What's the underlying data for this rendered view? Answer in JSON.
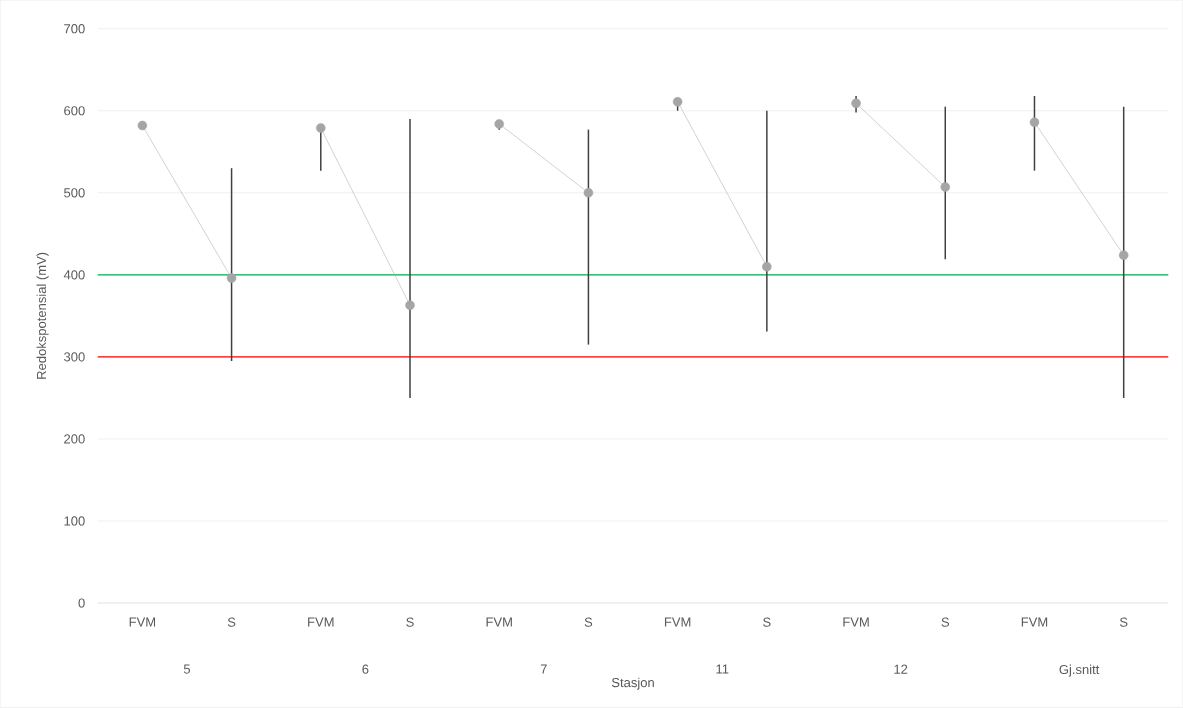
{
  "chart_data": {
    "type": "line",
    "xlabel": "Stasjon",
    "ylabel": "Redokspotensial (mV)",
    "categories": [
      "FVM",
      "S",
      "FVM",
      "S",
      "FVM",
      "S",
      "FVM",
      "S",
      "FVM",
      "S",
      "FVM",
      "S"
    ],
    "series": [
      {
        "color": "#a5a5a5",
        "values": [
          582,
          396,
          null,
          null,
          null,
          null,
          null,
          null,
          null,
          null,
          null,
          null
        ],
        "errors": [
          null,
          [
            295,
            530
          ],
          null,
          null,
          null,
          null,
          null,
          null,
          null,
          null,
          null,
          null
        ]
      },
      {
        "color": "#a5a5a5",
        "values": [
          null,
          null,
          579,
          363,
          null,
          null,
          null,
          null,
          null,
          null,
          null,
          null
        ],
        "errors": [
          null,
          null,
          [
            527,
            579
          ],
          [
            250,
            590
          ],
          null,
          null,
          null,
          null,
          null,
          null,
          null,
          null
        ]
      },
      {
        "color": "#a5a5a5",
        "values": [
          null,
          null,
          null,
          null,
          584,
          500,
          null,
          null,
          null,
          null,
          null,
          null
        ],
        "errors": [
          null,
          null,
          null,
          null,
          [
            577,
            584
          ],
          [
            315,
            577
          ],
          null,
          null,
          null,
          null,
          null,
          null
        ]
      },
      {
        "color": "#a5a5a5",
        "values": [
          null,
          null,
          null,
          null,
          null,
          null,
          611,
          410,
          null,
          null,
          null,
          null
        ],
        "errors": [
          null,
          null,
          null,
          null,
          null,
          null,
          [
            600,
            611
          ],
          [
            331,
            600
          ],
          null,
          null,
          null,
          null
        ]
      },
      {
        "color": "#a5a5a5",
        "values": [
          null,
          null,
          null,
          null,
          null,
          null,
          null,
          null,
          609,
          507,
          null,
          null
        ],
        "errors": [
          null,
          null,
          null,
          null,
          null,
          null,
          null,
          null,
          [
            598,
            618
          ],
          [
            419,
            605
          ],
          null,
          null
        ]
      },
      {
        "color": "#a5a5a5",
        "values": [
          null,
          null,
          null,
          null,
          null,
          null,
          null,
          null,
          null,
          null,
          586,
          424
        ],
        "errors": [
          null,
          null,
          null,
          null,
          null,
          null,
          null,
          null,
          null,
          null,
          [
            527,
            618
          ],
          [
            250,
            605
          ]
        ]
      }
    ],
    "ylim": [
      0,
      700
    ],
    "yticks": [
      0,
      100,
      200,
      300,
      400,
      500,
      600,
      700
    ],
    "grid": "y",
    "marker": "circle",
    "line_style": "solid",
    "ref_lines": [
      {
        "axis": "y",
        "value": 400,
        "color": "#00b050"
      },
      {
        "axis": "y",
        "value": 300,
        "color": "#ff0000"
      }
    ],
    "annotations": [
      "5",
      "6",
      "7",
      "11",
      "12",
      "Gj.snitt"
    ]
  }
}
